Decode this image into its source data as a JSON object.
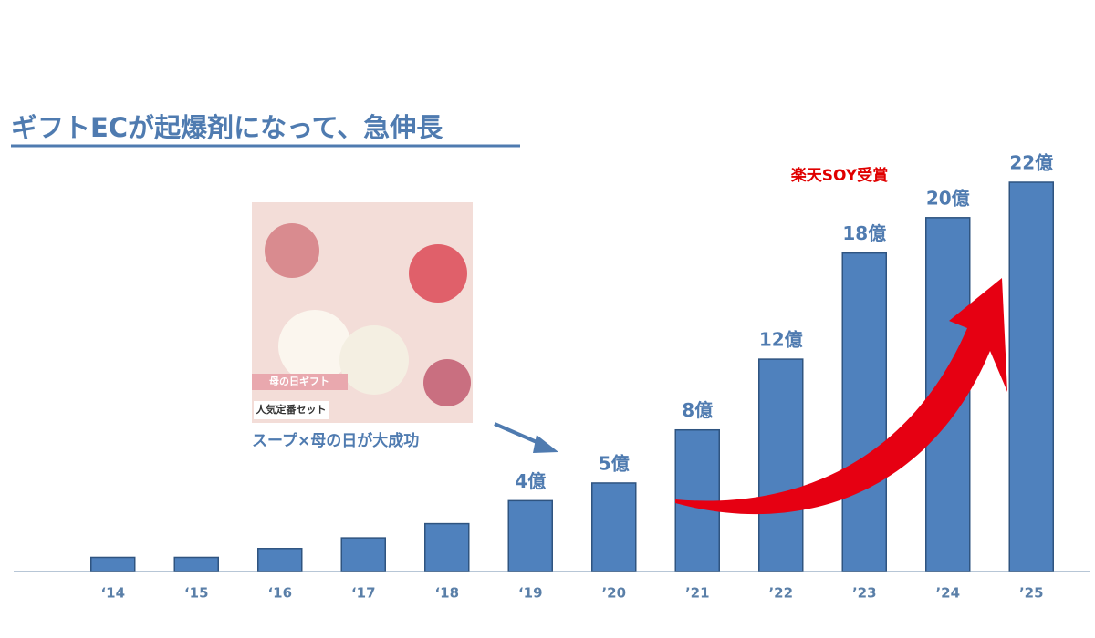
{
  "chart_data": {
    "type": "bar",
    "title": "ギフトECが起爆剤になって、急伸長",
    "categories": [
      "‘14",
      "‘15",
      "‘16",
      "‘17",
      "‘18",
      "‘19",
      "’20",
      "’21",
      "’22",
      "’23",
      "’24",
      "’25"
    ],
    "values": [
      0.8,
      0.8,
      1.3,
      1.9,
      2.7,
      4,
      5,
      8,
      12,
      18,
      20,
      22
    ],
    "value_labels": [
      null,
      null,
      null,
      null,
      null,
      "4億",
      "5億",
      "8億",
      "12億",
      "18億",
      "20億",
      "22億"
    ],
    "color": "#4f81bd",
    "annotations": {
      "award": "楽天SOY受賞",
      "gift": "スープ×母の日が大成功",
      "photo_label": "人気定番セット",
      "photo_caption": "母の日ギフト"
    }
  }
}
